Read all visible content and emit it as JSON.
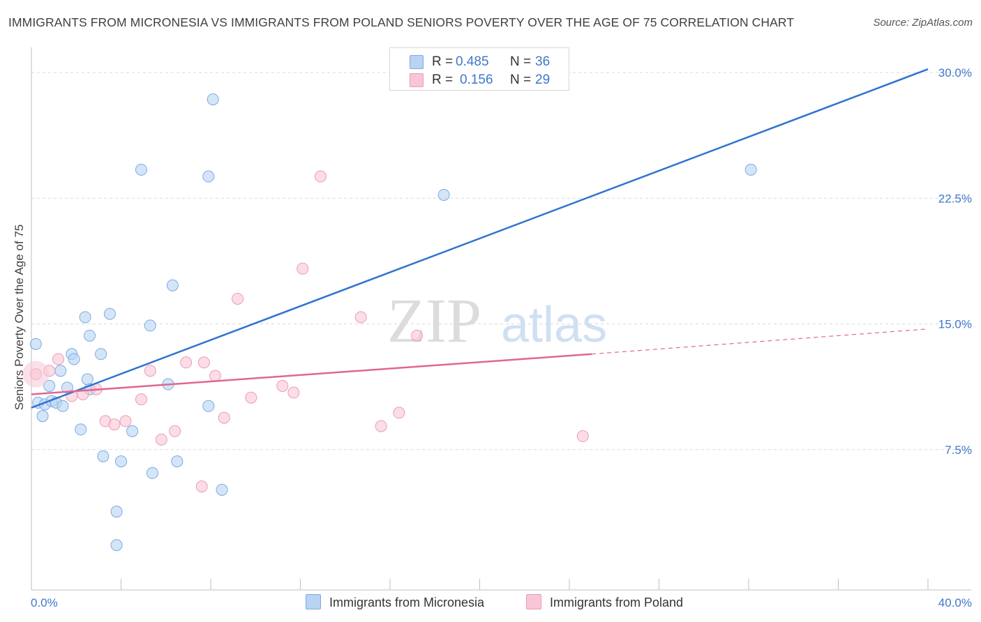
{
  "title": "IMMIGRANTS FROM MICRONESIA VS IMMIGRANTS FROM POLAND SENIORS POVERTY OVER THE AGE OF 75 CORRELATION CHART",
  "source": "Source: ZipAtlas.com",
  "watermark": {
    "zip": "ZIP",
    "atlas": "atlas"
  },
  "colors": {
    "blue": "#7aaae3",
    "blue_fill": "#b9d3f3",
    "blue_line": "#2f73cf",
    "pink": "#ee9ab6",
    "pink_fill": "#f8c6d6",
    "pink_line": "#e2668f",
    "axis_text": "#3f78c8",
    "grid": "#d9d9d9"
  },
  "legend": {
    "r_label": "R =",
    "n_label": "N =",
    "series": [
      {
        "name": "Immigrants from Micronesia",
        "r": "0.485",
        "n": "36"
      },
      {
        "name": "Immigrants from Poland",
        "r": "0.156",
        "n": "29"
      }
    ]
  },
  "chart_data": {
    "type": "scatter",
    "title": "IMMIGRANTS FROM MICRONESIA VS IMMIGRANTS FROM POLAND SENIORS POVERTY OVER THE AGE OF 75 CORRELATION CHART",
    "xlabel": "",
    "ylabel": "Seniors Poverty Over the Age of 75",
    "xlim": [
      0,
      40
    ],
    "ylim": [
      0,
      31
    ],
    "x_tick_labels": [
      "0.0%",
      "40.0%"
    ],
    "y_ticks": [
      7.5,
      15.0,
      22.5,
      30.0
    ],
    "y_tick_labels": [
      "7.5%",
      "15.0%",
      "22.5%",
      "30.0%"
    ],
    "grid": "horizontal dashed",
    "legend_position": "top-center",
    "series": [
      {
        "name": "Immigrants from Micronesia",
        "points": [
          [
            0.2,
            13.8
          ],
          [
            0.3,
            10.3
          ],
          [
            0.5,
            9.5
          ],
          [
            0.6,
            10.2
          ],
          [
            0.8,
            11.3
          ],
          [
            0.9,
            10.4
          ],
          [
            1.1,
            10.3
          ],
          [
            1.3,
            12.2
          ],
          [
            1.4,
            10.1
          ],
          [
            1.6,
            11.2
          ],
          [
            1.8,
            13.2
          ],
          [
            1.9,
            12.9
          ],
          [
            2.2,
            8.7
          ],
          [
            2.4,
            15.4
          ],
          [
            2.5,
            11.7
          ],
          [
            2.6,
            11.1
          ],
          [
            2.6,
            14.3
          ],
          [
            3.1,
            13.2
          ],
          [
            3.2,
            7.1
          ],
          [
            3.5,
            15.6
          ],
          [
            3.8,
            3.8
          ],
          [
            3.8,
            1.8
          ],
          [
            4.0,
            6.8
          ],
          [
            4.5,
            8.6
          ],
          [
            4.9,
            24.2
          ],
          [
            5.3,
            14.9
          ],
          [
            5.4,
            6.1
          ],
          [
            6.3,
            17.3
          ],
          [
            6.5,
            6.8
          ],
          [
            6.1,
            11.4
          ],
          [
            7.9,
            10.1
          ],
          [
            7.9,
            23.8
          ],
          [
            8.1,
            28.4
          ],
          [
            8.5,
            5.1
          ],
          [
            18.4,
            22.7
          ],
          [
            32.1,
            24.2
          ]
        ],
        "trendline": {
          "x": [
            0.0,
            40.0
          ],
          "y": [
            10.0,
            30.2
          ]
        }
      },
      {
        "name": "Immigrants from Poland",
        "points": [
          [
            0.2,
            12.0
          ],
          [
            0.8,
            12.2
          ],
          [
            1.2,
            12.9
          ],
          [
            1.8,
            10.7
          ],
          [
            2.3,
            10.8
          ],
          [
            2.9,
            11.1
          ],
          [
            3.3,
            9.2
          ],
          [
            3.7,
            9.0
          ],
          [
            4.2,
            9.2
          ],
          [
            4.9,
            10.5
          ],
          [
            5.3,
            12.2
          ],
          [
            5.8,
            8.1
          ],
          [
            6.4,
            8.6
          ],
          [
            6.9,
            12.7
          ],
          [
            7.6,
            5.3
          ],
          [
            7.7,
            12.7
          ],
          [
            8.2,
            11.9
          ],
          [
            8.6,
            9.4
          ],
          [
            9.2,
            16.5
          ],
          [
            9.8,
            10.6
          ],
          [
            11.2,
            11.3
          ],
          [
            11.7,
            10.9
          ],
          [
            12.1,
            18.3
          ],
          [
            12.9,
            23.8
          ],
          [
            14.7,
            15.4
          ],
          [
            15.6,
            8.9
          ],
          [
            16.4,
            9.7
          ],
          [
            17.2,
            14.3
          ],
          [
            24.6,
            8.3
          ]
        ],
        "trendline": {
          "x": [
            0.0,
            25.0
          ],
          "y": [
            10.8,
            13.2
          ],
          "dashed_extension": {
            "x": [
              25.0,
              40.0
            ],
            "y": [
              13.2,
              14.7
            ]
          }
        }
      }
    ]
  }
}
